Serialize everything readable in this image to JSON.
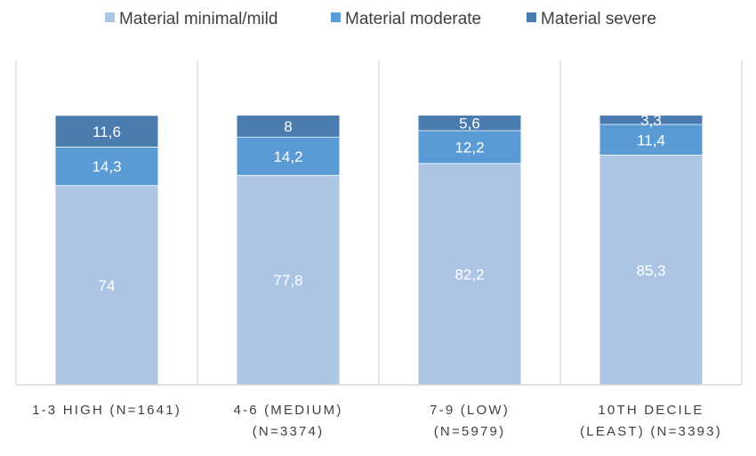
{
  "chart_data": {
    "type": "bar",
    "stacked": true,
    "title": "",
    "xlabel": "",
    "ylabel": "",
    "ylim": [
      0,
      100
    ],
    "grid": false,
    "legend_position": "top",
    "categories": [
      [
        "1-3 HIGH (N=1641)"
      ],
      [
        "4-6 (MEDIUM)",
        "(N=3374)"
      ],
      [
        "7-9 (LOW)",
        "(N=5979)"
      ],
      [
        "10TH DECILE",
        "(LEAST) (N=3393)"
      ]
    ],
    "series": [
      {
        "name": "Material minimal/mild",
        "color": "#adc5e5",
        "values": [
          74,
          77.8,
          82.2,
          85.3
        ],
        "labels": [
          "74",
          "77,8",
          "82,2",
          "85,3"
        ]
      },
      {
        "name": "Material moderate",
        "color": "#5a9bd5",
        "values": [
          14.3,
          14.2,
          12.2,
          11.4
        ],
        "labels": [
          "14,3",
          "14,2",
          "12,2",
          "11,4"
        ]
      },
      {
        "name": "Material severe",
        "color": "#4a7cb0",
        "values": [
          11.6,
          8,
          5.6,
          3.3
        ],
        "labels": [
          "11,6",
          "8",
          "5,6",
          "3,3"
        ]
      }
    ]
  }
}
